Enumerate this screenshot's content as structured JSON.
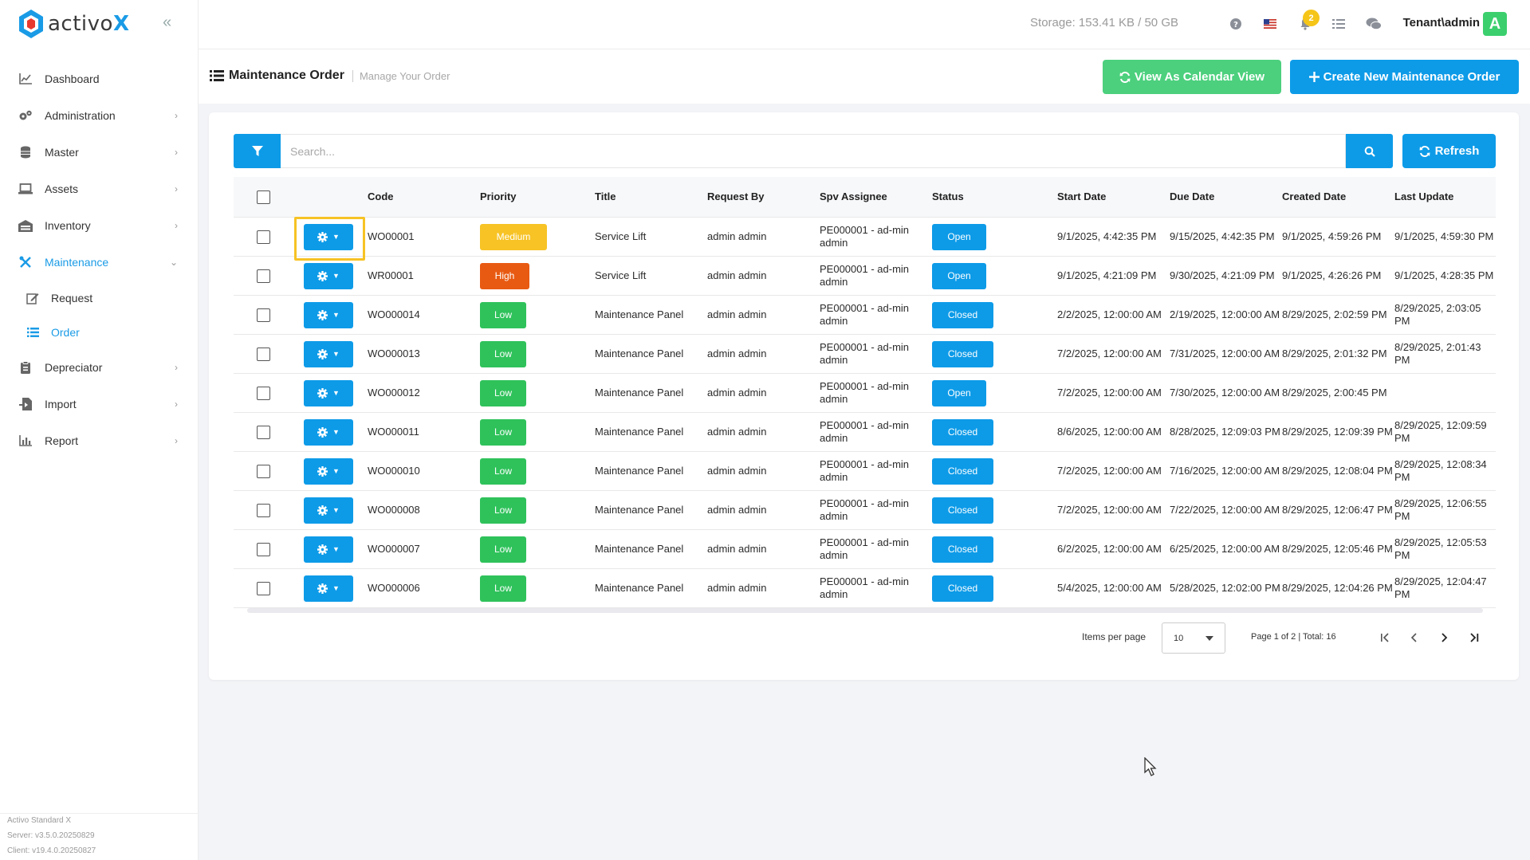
{
  "app": {
    "logo_text_main": "activo",
    "logo_text_x": "X"
  },
  "sidebar": {
    "items": [
      {
        "label": "Dashboard",
        "icon": "chart-line-icon",
        "has_chevron": false,
        "active": false
      },
      {
        "label": "Administration",
        "icon": "cogs-icon",
        "has_chevron": true,
        "active": false
      },
      {
        "label": "Master",
        "icon": "database-icon",
        "has_chevron": true,
        "active": false
      },
      {
        "label": "Assets",
        "icon": "laptop-icon",
        "has_chevron": true,
        "active": false
      },
      {
        "label": "Inventory",
        "icon": "warehouse-icon",
        "has_chevron": true,
        "active": false
      },
      {
        "label": "Maintenance",
        "icon": "tools-icon",
        "has_chevron": true,
        "active": true,
        "expanded": true
      }
    ],
    "sub_items": [
      {
        "label": "Request",
        "icon": "edit-icon",
        "active": false
      },
      {
        "label": "Order",
        "icon": "list-icon",
        "active": true
      }
    ],
    "items_after": [
      {
        "label": "Depreciator",
        "icon": "clipboard-icon",
        "has_chevron": true
      },
      {
        "label": "Import",
        "icon": "file-import-icon",
        "has_chevron": true
      },
      {
        "label": "Report",
        "icon": "chart-bar-icon",
        "has_chevron": true
      }
    ],
    "version": {
      "product": "Activo Standard X",
      "server": "Server: v3.5.0.20250829",
      "client": "Client: v19.4.0.20250827"
    }
  },
  "topbar": {
    "storage": "Storage: 153.41 KB / 50 GB",
    "notification_count": "2",
    "tenant": "Tenant\\admin",
    "avatar_letter": "A"
  },
  "page": {
    "title": "Maintenance Order",
    "subtitle": "Manage Your Order",
    "calendar_button": "View As Calendar View",
    "create_button": "Create New Maintenance Order"
  },
  "toolbar": {
    "search_placeholder": "Search...",
    "refresh_label": "Refresh"
  },
  "table": {
    "headers": [
      "Code",
      "Priority",
      "Title",
      "Request By",
      "Spv Assignee",
      "Status",
      "Start Date",
      "Due Date",
      "Created Date",
      "Last Update"
    ],
    "rows": [
      {
        "code": "WO00001",
        "priority": "Medium",
        "title": "Service Lift",
        "request_by": "admin admin",
        "spv": "PE000001 - ad-min admin",
        "status": "Open",
        "start": "9/1/2025, 4:42:35 PM",
        "due": "9/15/2025, 4:42:35 PM",
        "created": "9/1/2025, 4:59:26 PM",
        "updated": "9/1/2025, 4:59:30 PM"
      },
      {
        "code": "WR00001",
        "priority": "High",
        "title": "Service Lift",
        "request_by": "admin admin",
        "spv": "PE000001 - ad-min admin",
        "status": "Open",
        "start": "9/1/2025, 4:21:09 PM",
        "due": "9/30/2025, 4:21:09 PM",
        "created": "9/1/2025, 4:26:26 PM",
        "updated": "9/1/2025, 4:28:35 PM"
      },
      {
        "code": "WO000014",
        "priority": "Low",
        "title": "Maintenance Panel",
        "request_by": "admin admin",
        "spv": "PE000001 - ad-min admin",
        "status": "Closed",
        "start": "2/2/2025, 12:00:00 AM",
        "due": "2/19/2025, 12:00:00 AM",
        "created": "8/29/2025, 2:02:59 PM",
        "updated": "8/29/2025, 2:03:05 PM"
      },
      {
        "code": "WO000013",
        "priority": "Low",
        "title": "Maintenance Panel",
        "request_by": "admin admin",
        "spv": "PE000001 - ad-min admin",
        "status": "Closed",
        "start": "7/2/2025, 12:00:00 AM",
        "due": "7/31/2025, 12:00:00 AM",
        "created": "8/29/2025, 2:01:32 PM",
        "updated": "8/29/2025, 2:01:43 PM"
      },
      {
        "code": "WO000012",
        "priority": "Low",
        "title": "Maintenance Panel",
        "request_by": "admin admin",
        "spv": "PE000001 - ad-min admin",
        "status": "Open",
        "start": "7/2/2025, 12:00:00 AM",
        "due": "7/30/2025, 12:00:00 AM",
        "created": "8/29/2025, 2:00:45 PM",
        "updated": ""
      },
      {
        "code": "WO000011",
        "priority": "Low",
        "title": "Maintenance Panel",
        "request_by": "admin admin",
        "spv": "PE000001 - ad-min admin",
        "status": "Closed",
        "start": "8/6/2025, 12:00:00 AM",
        "due": "8/28/2025, 12:09:03 PM",
        "created": "8/29/2025, 12:09:39 PM",
        "updated": "8/29/2025, 12:09:59 PM"
      },
      {
        "code": "WO000010",
        "priority": "Low",
        "title": "Maintenance Panel",
        "request_by": "admin admin",
        "spv": "PE000001 - ad-min admin",
        "status": "Closed",
        "start": "7/2/2025, 12:00:00 AM",
        "due": "7/16/2025, 12:00:00 AM",
        "created": "8/29/2025, 12:08:04 PM",
        "updated": "8/29/2025, 12:08:34 PM"
      },
      {
        "code": "WO000008",
        "priority": "Low",
        "title": "Maintenance Panel",
        "request_by": "admin admin",
        "spv": "PE000001 - ad-min admin",
        "status": "Closed",
        "start": "7/2/2025, 12:00:00 AM",
        "due": "7/22/2025, 12:00:00 AM",
        "created": "8/29/2025, 12:06:47 PM",
        "updated": "8/29/2025, 12:06:55 PM"
      },
      {
        "code": "WO000007",
        "priority": "Low",
        "title": "Maintenance Panel",
        "request_by": "admin admin",
        "spv": "PE000001 - ad-min admin",
        "status": "Closed",
        "start": "6/2/2025, 12:00:00 AM",
        "due": "6/25/2025, 12:00:00 AM",
        "created": "8/29/2025, 12:05:46 PM",
        "updated": "8/29/2025, 12:05:53 PM"
      },
      {
        "code": "WO000006",
        "priority": "Low",
        "title": "Maintenance Panel",
        "request_by": "admin admin",
        "spv": "PE000001 - ad-min admin",
        "status": "Closed",
        "start": "5/4/2025, 12:00:00 AM",
        "due": "5/28/2025, 12:02:00 PM",
        "created": "8/29/2025, 12:04:26 PM",
        "updated": "8/29/2025, 12:04:47 PM"
      }
    ]
  },
  "pagination": {
    "items_per_page_label": "Items per page",
    "items_per_page": "10",
    "info": "Page 1 of 2 | Total: 16"
  },
  "colors": {
    "primary": "#0d9be8",
    "green": "#4cd07d",
    "medium": "#f7c325",
    "high": "#e85a12",
    "low": "#2fc25b"
  }
}
